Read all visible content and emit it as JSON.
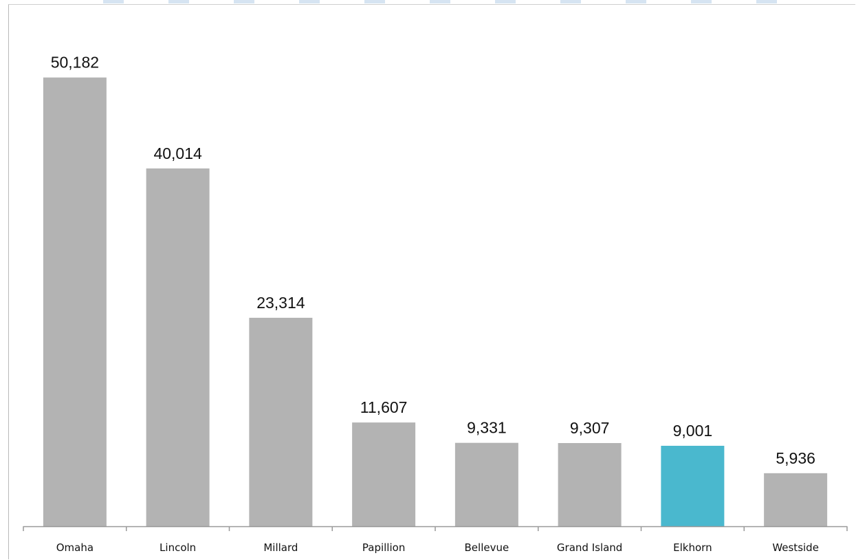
{
  "chart_data": {
    "type": "bar",
    "categories": [
      "Omaha",
      "Lincoln",
      "Millard",
      "Papillion",
      "Bellevue",
      "Grand Island",
      "Elkhorn",
      "Westside"
    ],
    "values": [
      50182,
      40014,
      23314,
      11607,
      9331,
      9307,
      9001,
      5936
    ],
    "value_labels": [
      "50,182",
      "40,014",
      "23,314",
      "11,607",
      "9,331",
      "9,307",
      "9,001",
      "5,936"
    ],
    "ylim": [
      0,
      55000
    ],
    "grid": false,
    "legend": "none",
    "colors": {
      "default_bar": "#b3b3b3",
      "highlight_bar": "#4ab8ce",
      "axis": "#999999"
    },
    "highlight_category": "Elkhorn"
  }
}
